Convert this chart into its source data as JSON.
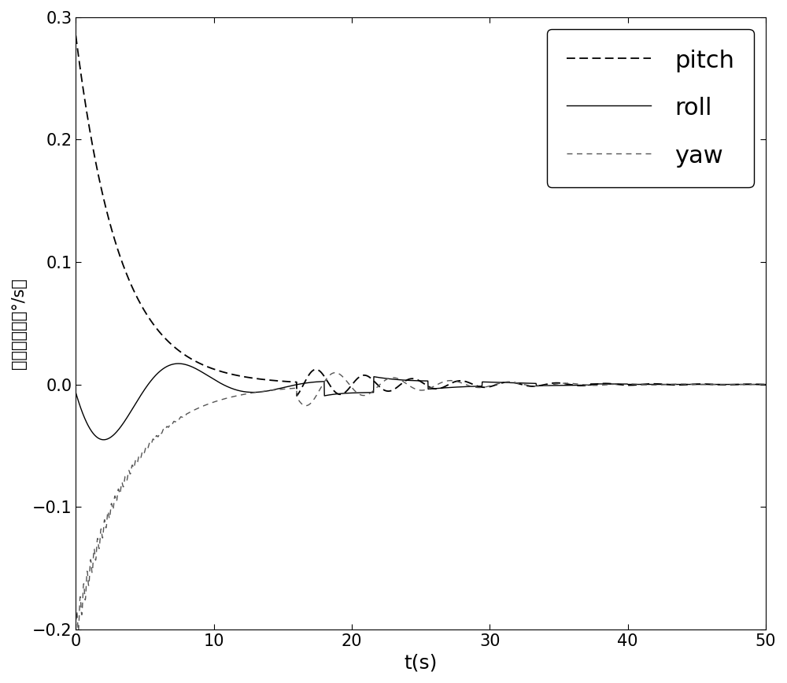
{
  "xlabel": "t(s)",
  "ylabel": "姿态角速度（°/s）",
  "xlim": [
    0,
    50
  ],
  "ylim": [
    -0.2,
    0.3
  ],
  "xticks": [
    0,
    10,
    20,
    30,
    40,
    50
  ],
  "yticks": [
    -0.2,
    -0.1,
    0.0,
    0.1,
    0.2,
    0.3
  ],
  "legend_labels": [
    "pitch",
    "roll",
    "yaw"
  ],
  "line_color": "#000000",
  "background_color": "#ffffff",
  "xlabel_fontsize": 18,
  "ylabel_fontsize": 15,
  "tick_fontsize": 15,
  "legend_fontsize": 22
}
